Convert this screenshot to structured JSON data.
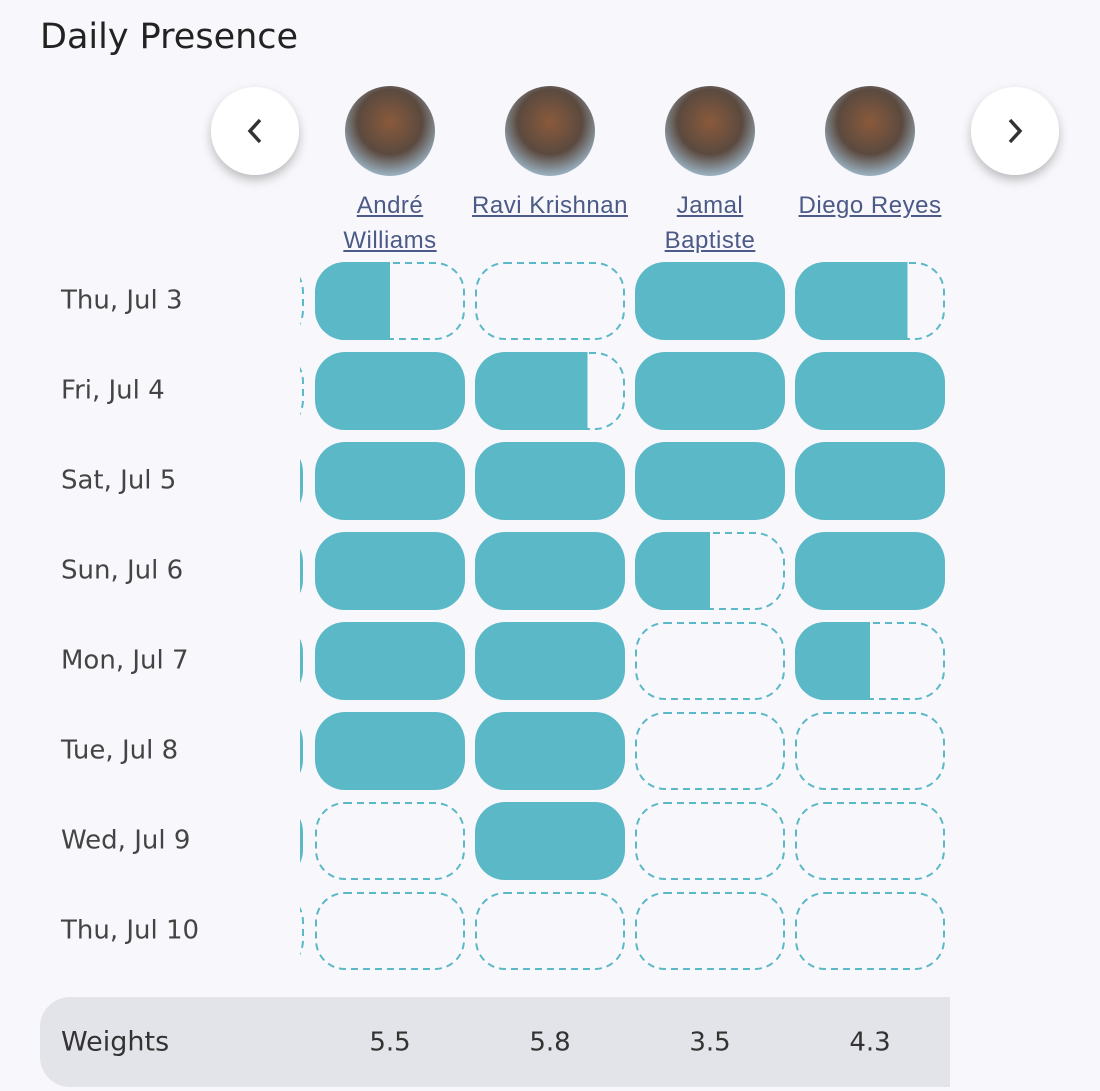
{
  "header": {
    "title": "Daily Presence"
  },
  "people": [
    {
      "name": "André Williams"
    },
    {
      "name": "Ravi Krishnan"
    },
    {
      "name": "Jamal Baptiste"
    },
    {
      "name": "Diego Reyes"
    }
  ],
  "days": [
    "Thu, Jul 3",
    "Fri, Jul 4",
    "Sat, Jul 5",
    "Sun, Jul 6",
    "Mon, Jul 7",
    "Tue, Jul 8",
    "Wed, Jul 9",
    "Thu, Jul 10"
  ],
  "presence": [
    [
      0.5,
      0,
      1,
      0.75
    ],
    [
      1,
      0.75,
      1,
      1
    ],
    [
      1,
      1,
      1,
      1
    ],
    [
      1,
      1,
      0.5,
      1
    ],
    [
      1,
      1,
      0,
      0.5
    ],
    [
      1,
      1,
      0,
      0
    ],
    [
      0,
      1,
      0,
      0
    ],
    [
      0,
      0,
      0,
      0
    ]
  ],
  "footer": {
    "label": "Weights",
    "values": [
      "5.5",
      "5.8",
      "3.5",
      "4.3"
    ]
  }
}
